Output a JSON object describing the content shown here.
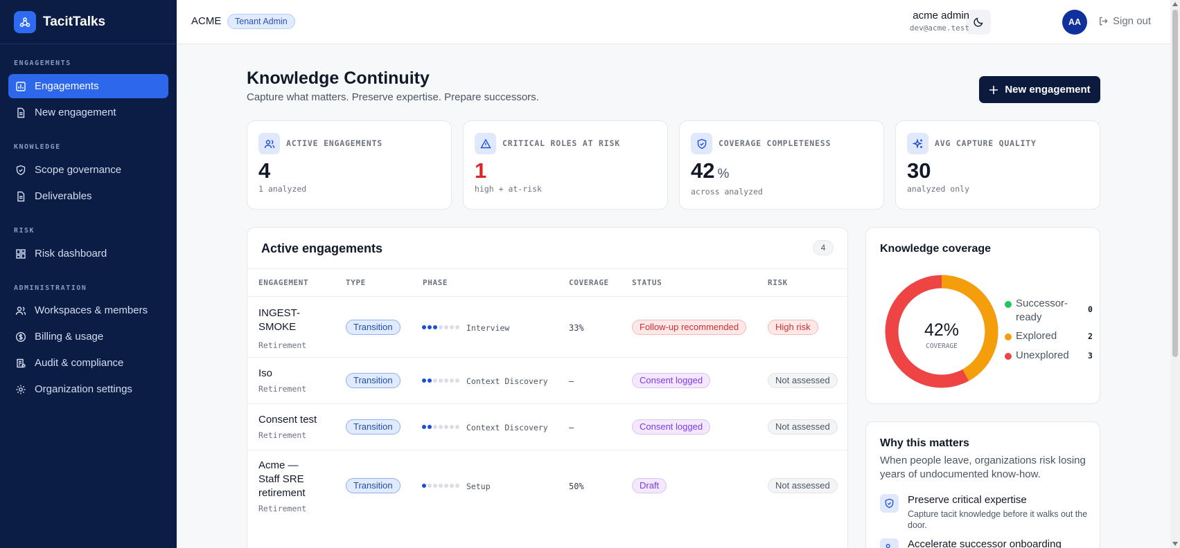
{
  "app": {
    "name": "TacitTalks"
  },
  "sidebar": {
    "sections": [
      {
        "label": "ENGAGEMENTS",
        "items": [
          {
            "label": "Engagements",
            "icon": "chart-icon",
            "active": true
          },
          {
            "label": "New engagement",
            "icon": "document-icon"
          }
        ]
      },
      {
        "label": "KNOWLEDGE",
        "items": [
          {
            "label": "Scope governance",
            "icon": "shield-icon"
          },
          {
            "label": "Deliverables",
            "icon": "document-icon"
          }
        ]
      },
      {
        "label": "RISK",
        "items": [
          {
            "label": "Risk dashboard",
            "icon": "grid-icon"
          }
        ]
      },
      {
        "label": "ADMINISTRATION",
        "items": [
          {
            "label": "Workspaces & members",
            "icon": "users-icon"
          },
          {
            "label": "Billing & usage",
            "icon": "dollar-icon"
          },
          {
            "label": "Audit & compliance",
            "icon": "audit-icon"
          },
          {
            "label": "Organization settings",
            "icon": "gear-icon"
          }
        ]
      }
    ]
  },
  "topbar": {
    "tenant": "ACME",
    "role_badge": "Tenant Admin",
    "user_name": "acme admin",
    "user_email": "dev@acme.test",
    "avatar_initials": "AA",
    "signout_label": "Sign out"
  },
  "page": {
    "title": "Knowledge Continuity",
    "subtitle": "Capture what matters. Preserve expertise. Prepare successors.",
    "new_button": "New engagement"
  },
  "stats": [
    {
      "label": "ACTIVE ENGAGEMENTS",
      "value": "4",
      "unit": "",
      "note": "1 analyzed",
      "icon": "users-icon",
      "color": "#111827"
    },
    {
      "label": "CRITICAL ROLES AT RISK",
      "value": "1",
      "unit": "",
      "note": "high + at-risk",
      "icon": "warning-icon",
      "color": "#dc2626"
    },
    {
      "label": "COVERAGE COMPLETENESS",
      "value": "42",
      "unit": "%",
      "note": "across analyzed",
      "icon": "shield-icon",
      "color": "#111827"
    },
    {
      "label": "AVG CAPTURE QUALITY",
      "value": "30",
      "unit": "",
      "note": "analyzed only",
      "icon": "sparkle-icon",
      "color": "#111827"
    }
  ],
  "engagements": {
    "title": "Active engagements",
    "count": "4",
    "columns": [
      "ENGAGEMENT",
      "TYPE",
      "PHASE",
      "COVERAGE",
      "STATUS",
      "RISK"
    ],
    "rows": [
      {
        "name": "INGEST-SMOKE",
        "sub": "Retirement",
        "type": "Transition",
        "phase": "Interview",
        "phase_step": 3,
        "coverage": "33%",
        "status": "Follow-up recommended",
        "status_kind": "follow",
        "risk": "High risk",
        "risk_kind": "high"
      },
      {
        "name": "Iso",
        "sub": "Retirement",
        "type": "Transition",
        "phase": "Context Discovery",
        "phase_step": 2,
        "coverage": "—",
        "status": "Consent logged",
        "status_kind": "consent",
        "risk": "Not assessed",
        "risk_kind": "na"
      },
      {
        "name": "Consent test",
        "sub": "Retirement",
        "type": "Transition",
        "phase": "Context Discovery",
        "phase_step": 2,
        "coverage": "—",
        "status": "Consent logged",
        "status_kind": "consent",
        "risk": "Not assessed",
        "risk_kind": "na"
      },
      {
        "name": "Acme — Staff SRE retirement",
        "sub": "Retirement",
        "type": "Transition",
        "phase": "Setup",
        "phase_step": 1,
        "coverage": "50%",
        "status": "Draft",
        "status_kind": "draft",
        "risk": "Not assessed",
        "risk_kind": "na"
      }
    ],
    "phase_total": 7
  },
  "coverage": {
    "title": "Knowledge coverage",
    "center_value": "42%",
    "center_label": "COVERAGE",
    "legend": [
      {
        "label": "Successor-ready",
        "value": "0",
        "color": "#22c55e"
      },
      {
        "label": "Explored",
        "value": "2",
        "color": "#f59e0b"
      },
      {
        "label": "Unexplored",
        "value": "3",
        "color": "#ef4444"
      }
    ],
    "explored_fraction": 0.42
  },
  "why": {
    "title": "Why this matters",
    "subtitle": "When people leave, organizations risk losing years of undocumented know-how.",
    "items": [
      {
        "title": "Preserve critical expertise",
        "desc": "Capture tacit knowledge before it walks out the door.",
        "icon": "shield-icon"
      },
      {
        "title": "Accelerate successor onboarding",
        "desc": "",
        "icon": "users-icon"
      }
    ]
  }
}
